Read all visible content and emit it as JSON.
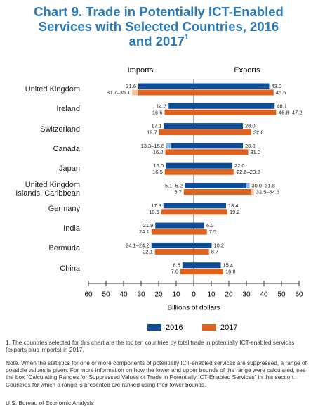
{
  "chart_data": {
    "type": "butterfly-range-bar",
    "title_lines": [
      "Chart 9. Trade in Potentially ICT-Enabled",
      "Services with Selected Countries, 2016",
      "and 2017"
    ],
    "title_footnote_marker": "1",
    "left_header": "Imports",
    "right_header": "Exports",
    "x_label": "Billions of dollars",
    "xlim_imports": [
      0,
      60
    ],
    "xlim_exports": [
      0,
      60
    ],
    "import_ticks": [
      0,
      10,
      20,
      30,
      40,
      50,
      60
    ],
    "export_ticks": [
      0,
      10,
      20,
      30,
      40,
      50,
      60
    ],
    "categories": [
      "United Kingdom",
      "Ireland",
      "Switzerland",
      "Canada",
      "Japan",
      "United Kingdom Islands, Caribbean",
      "Germany",
      "India",
      "Bermuda",
      "China"
    ],
    "series": [
      {
        "name": "2016",
        "color": "#0d4d97",
        "range_color": "#8db4de",
        "imports": {
          "values": [
            31.6,
            14.3,
            17.1,
            13.3,
            16.0,
            5.1,
            17.3,
            21.9,
            24.1,
            6.5
          ],
          "upper": [
            null,
            null,
            null,
            15.6,
            null,
            5.2,
            null,
            null,
            24.2,
            null
          ],
          "value_labels": [
            "31.6",
            "14.3",
            "17.1",
            "13.3–15.6",
            "16.0",
            "5.1–5.2",
            "17.3",
            "21.9",
            "24.1–24.2",
            "6.5"
          ]
        },
        "exports": {
          "values": [
            43.0,
            46.1,
            28.0,
            28.0,
            22.0,
            30.0,
            18.4,
            6.0,
            10.2,
            15.4
          ],
          "upper": [
            null,
            null,
            null,
            null,
            null,
            31.8,
            null,
            null,
            null,
            null
          ],
          "value_labels": [
            "43.0",
            "46.1",
            "28.0",
            "28.0",
            "22.0",
            "30.0–31.8",
            "18.4",
            "6.0",
            "10.2",
            "15.4"
          ]
        }
      },
      {
        "name": "2017",
        "color": "#e0621f",
        "range_color": "#f5bf9a",
        "imports": {
          "values": [
            31.7,
            16.6,
            19.7,
            16.2,
            16.5,
            5.7,
            18.5,
            24.1,
            22.1,
            7.6
          ],
          "upper": [
            35.1,
            null,
            null,
            null,
            null,
            null,
            null,
            null,
            null,
            null
          ],
          "value_labels": [
            "31.7–35.1",
            "16.6",
            "19.7",
            "16.2",
            "16.5",
            "5.7",
            "18.5",
            "24.1",
            "22.1",
            "7.6"
          ]
        },
        "exports": {
          "values": [
            45.5,
            46.8,
            32.8,
            31.0,
            22.6,
            32.5,
            19.2,
            7.5,
            8.7,
            16.8
          ],
          "upper": [
            null,
            47.2,
            null,
            null,
            23.2,
            34.3,
            null,
            null,
            null,
            null
          ],
          "value_labels": [
            "45.5",
            "46.8–47.2",
            "32.8",
            "31.0",
            "22.6–23.2",
            "32.5–34.3",
            "19.2",
            "7.5",
            "8.7",
            "16.8"
          ]
        }
      }
    ],
    "footnotes": [
      "1. The countries selected for this chart are the top ten countries by total trade in potentially ICT-enabled services (exports plus imports) in 2017.",
      "Note. When the statistics for one or more components of potentially ICT-enabled services are suppressed, a range of possible values is given. For more information on how the lower and upper bounds of the range were calculated, see the box “Calculating Ranges for Suppressed Values of Trade in Potentially ICT-Enabled Services” in this section. Countries for which a range is presented are ranked using their lower bounds."
    ],
    "source": "U.S. Bureau of Economic Analysis"
  }
}
